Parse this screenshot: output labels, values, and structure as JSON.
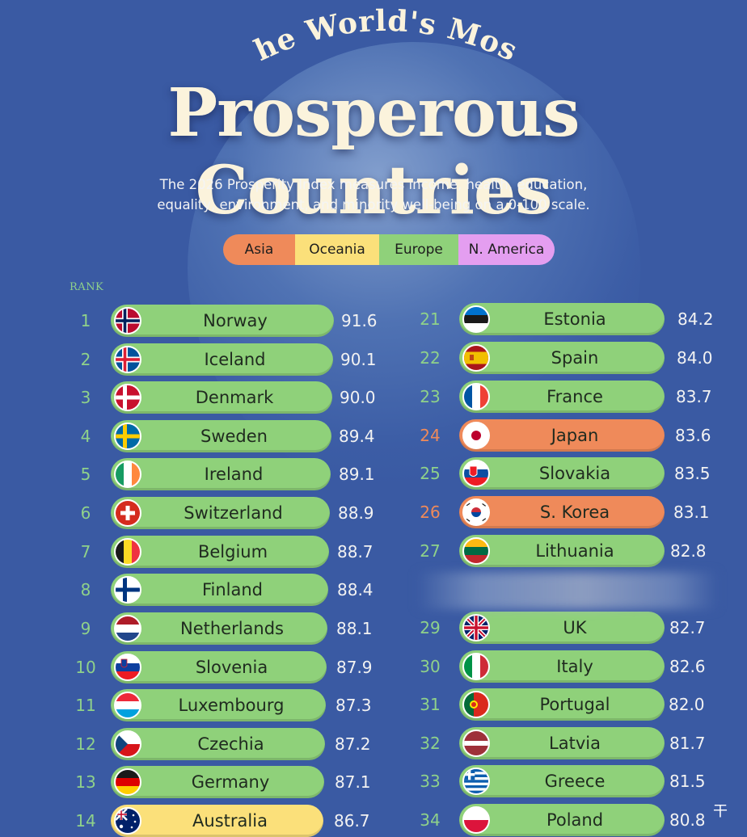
{
  "header": {
    "arc_title": "The World's Most",
    "title": "Prosperous Countries",
    "subtitle_line1": "The 2026 Prosperity Index measures income, health, education,",
    "subtitle_line2": "equality, environment, and minority well-being on a 0-100 scale."
  },
  "legend": {
    "items": [
      {
        "label": "Asia",
        "color": "#ef8a5a"
      },
      {
        "label": "Oceania",
        "color": "#fbe07a"
      },
      {
        "label": "Europe",
        "color": "#8fd17a"
      },
      {
        "label": "N. America",
        "color": "#e49ef0"
      }
    ]
  },
  "rank_header": "RANK",
  "colors": {
    "Asia": "#ef8a5a",
    "Oceania": "#fbe07a",
    "Europe": "#8fd17a",
    "background": "#3a5aa3",
    "rank_green": "#8fd18a",
    "rank_orange": "#ef8a5a"
  },
  "chart_data": {
    "type": "table",
    "columns": [
      "rank",
      "country",
      "region",
      "score",
      "flag"
    ],
    "rows": [
      {
        "rank": "1",
        "country": "Norway",
        "region": "Europe",
        "score": "91.6",
        "flag": "flag-norway"
      },
      {
        "rank": "2",
        "country": "Iceland",
        "region": "Europe",
        "score": "90.1",
        "flag": "flag-iceland"
      },
      {
        "rank": "3",
        "country": "Denmark",
        "region": "Europe",
        "score": "90.0",
        "flag": "flag-denmark"
      },
      {
        "rank": "4",
        "country": "Sweden",
        "region": "Europe",
        "score": "89.4",
        "flag": "flag-sweden"
      },
      {
        "rank": "5",
        "country": "Ireland",
        "region": "Europe",
        "score": "89.1",
        "flag": "flag-ireland"
      },
      {
        "rank": "6",
        "country": "Switzerland",
        "region": "Europe",
        "score": "88.9",
        "flag": "flag-switzerland"
      },
      {
        "rank": "7",
        "country": "Belgium",
        "region": "Europe",
        "score": "88.7",
        "flag": "flag-belgium"
      },
      {
        "rank": "8",
        "country": "Finland",
        "region": "Europe",
        "score": "88.4",
        "flag": "flag-finland"
      },
      {
        "rank": "9",
        "country": "Netherlands",
        "region": "Europe",
        "score": "88.1",
        "flag": "flag-netherlands"
      },
      {
        "rank": "10",
        "country": "Slovenia",
        "region": "Europe",
        "score": "87.9",
        "flag": "flag-slovenia"
      },
      {
        "rank": "11",
        "country": "Luxembourg",
        "region": "Europe",
        "score": "87.3",
        "flag": "flag-luxembourg"
      },
      {
        "rank": "12",
        "country": "Czechia",
        "region": "Europe",
        "score": "87.2",
        "flag": "flag-czechia"
      },
      {
        "rank": "13",
        "country": "Germany",
        "region": "Europe",
        "score": "87.1",
        "flag": "flag-germany"
      },
      {
        "rank": "14",
        "country": "Australia",
        "region": "Oceania",
        "score": "86.7",
        "flag": "flag-australia"
      },
      {
        "rank": "21",
        "country": "Estonia",
        "region": "Europe",
        "score": "84.2",
        "flag": "flag-estonia"
      },
      {
        "rank": "22",
        "country": "Spain",
        "region": "Europe",
        "score": "84.0",
        "flag": "flag-spain"
      },
      {
        "rank": "23",
        "country": "France",
        "region": "Europe",
        "score": "83.7",
        "flag": "flag-france"
      },
      {
        "rank": "24",
        "country": "Japan",
        "region": "Asia",
        "score": "83.6",
        "flag": "flag-japan"
      },
      {
        "rank": "25",
        "country": "Slovakia",
        "region": "Europe",
        "score": "83.5",
        "flag": "flag-slovakia"
      },
      {
        "rank": "26",
        "country": "S. Korea",
        "region": "Asia",
        "score": "83.1",
        "flag": "flag-south-korea"
      },
      {
        "rank": "27",
        "country": "Lithuania",
        "region": "Europe",
        "score": "82.8",
        "flag": "flag-lithuania"
      },
      {
        "rank": "29",
        "country": "UK",
        "region": "Europe",
        "score": "82.7",
        "flag": "flag-uk"
      },
      {
        "rank": "30",
        "country": "Italy",
        "region": "Europe",
        "score": "82.6",
        "flag": "flag-italy"
      },
      {
        "rank": "31",
        "country": "Portugal",
        "region": "Europe",
        "score": "82.0",
        "flag": "flag-portugal"
      },
      {
        "rank": "32",
        "country": "Latvia",
        "region": "Europe",
        "score": "81.7",
        "flag": "flag-latvia"
      },
      {
        "rank": "33",
        "country": "Greece",
        "region": "Europe",
        "score": "81.5",
        "flag": "flag-greece"
      },
      {
        "rank": "34",
        "country": "Poland",
        "region": "Europe",
        "score": "80.8",
        "flag": "flag-poland"
      }
    ]
  },
  "corner_icon": "watermark-icon"
}
